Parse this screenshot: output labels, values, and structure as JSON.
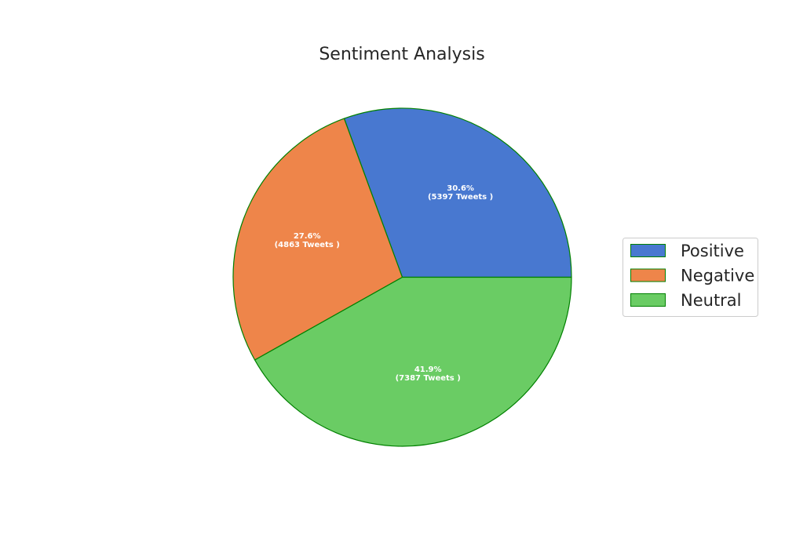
{
  "chart_data": {
    "type": "pie",
    "title": "Sentiment Analysis",
    "categories": [
      "Positive",
      "Negative",
      "Neutral"
    ],
    "values": [
      5397,
      4863,
      7387
    ],
    "percentages": [
      "30.6%",
      "27.6%",
      "41.9%"
    ],
    "slice_labels": [
      {
        "pct": "30.6%",
        "count": "(5397 Tweets )"
      },
      {
        "pct": "27.6%",
        "count": "(4863 Tweets )"
      },
      {
        "pct": "41.9%",
        "count": "(7387 Tweets )"
      }
    ],
    "colors": [
      "#4878d0",
      "#ee854a",
      "#6acc64"
    ],
    "edge_color": "#008000",
    "legend": {
      "placement": "center-right",
      "entries": [
        "Positive",
        "Negative",
        "Neutral"
      ]
    }
  }
}
